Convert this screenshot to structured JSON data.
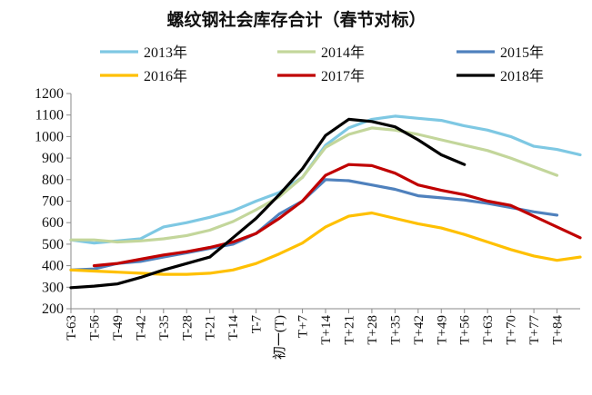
{
  "chart_data": {
    "type": "line",
    "title": "螺纹钢社会库存合计（春节对标）",
    "xlabel": "",
    "ylabel": "",
    "ylim": [
      200,
      1200
    ],
    "yticks": [
      200,
      300,
      400,
      500,
      600,
      700,
      800,
      900,
      1000,
      1100,
      1200
    ],
    "xlim": [
      -63,
      91
    ],
    "xtick_values": [
      -63,
      -56,
      -49,
      -42,
      -35,
      -28,
      -21,
      -14,
      -7,
      0,
      7,
      14,
      21,
      28,
      35,
      42,
      49,
      56,
      63,
      70,
      77,
      84
    ],
    "xtick_labels": [
      "T-63",
      "T-56",
      "T-49",
      "T-42",
      "T-35",
      "T-28",
      "T-21",
      "T-14",
      "T-7",
      "初一(T)",
      "T+7",
      "T+14",
      "T+21",
      "T+28",
      "T+35",
      "T+42",
      "T+49",
      "T+56",
      "T+63",
      "T+70",
      "T+77",
      "T+84"
    ],
    "grid": false,
    "legend": "top",
    "series": [
      {
        "name": "2013年",
        "color": "#7ec8e3",
        "x": [
          -63,
          -56,
          -49,
          -42,
          -35,
          -28,
          -21,
          -14,
          -7,
          0,
          7,
          14,
          21,
          28,
          35,
          42,
          49,
          56,
          63,
          70,
          77,
          84,
          91
        ],
        "y": [
          520,
          505,
          515,
          525,
          580,
          600,
          625,
          655,
          700,
          740,
          810,
          960,
          1040,
          1080,
          1095,
          1085,
          1075,
          1050,
          1030,
          1000,
          955,
          940,
          915
        ]
      },
      {
        "name": "2014年",
        "color": "#c3d69b",
        "x": [
          -63,
          -56,
          -49,
          -42,
          -35,
          -28,
          -21,
          -14,
          -7,
          0,
          7,
          14,
          21,
          28,
          35,
          42,
          49,
          56,
          63,
          70,
          77,
          84
        ],
        "y": [
          520,
          520,
          510,
          515,
          525,
          540,
          565,
          605,
          660,
          720,
          810,
          950,
          1010,
          1040,
          1030,
          1010,
          985,
          960,
          935,
          900,
          860,
          820
        ]
      },
      {
        "name": "2015年",
        "color": "#4f81bd",
        "x": [
          -63,
          -56,
          -49,
          -42,
          -35,
          -28,
          -21,
          -14,
          -7,
          0,
          7,
          14,
          21,
          28,
          35,
          42,
          49,
          56,
          63,
          70,
          77,
          84
        ],
        "y": [
          380,
          385,
          410,
          420,
          440,
          460,
          480,
          500,
          550,
          640,
          700,
          800,
          795,
          775,
          755,
          725,
          715,
          705,
          690,
          670,
          650,
          635
        ]
      },
      {
        "name": "2016年",
        "color": "#ffc000",
        "x": [
          -63,
          -56,
          -49,
          -42,
          -35,
          -28,
          -21,
          -14,
          -7,
          0,
          7,
          14,
          21,
          28,
          35,
          42,
          49,
          56,
          63,
          70,
          77,
          84,
          91
        ],
        "y": [
          380,
          375,
          370,
          365,
          360,
          360,
          365,
          380,
          410,
          455,
          505,
          580,
          630,
          645,
          620,
          595,
          575,
          545,
          510,
          475,
          445,
          425,
          440
        ]
      },
      {
        "name": "2017年",
        "color": "#c00000",
        "x": [
          -56,
          -49,
          -42,
          -35,
          -28,
          -21,
          -14,
          -7,
          0,
          7,
          14,
          21,
          28,
          35,
          42,
          49,
          56,
          63,
          70,
          77,
          84,
          91
        ],
        "y": [
          400,
          410,
          430,
          450,
          465,
          485,
          510,
          550,
          620,
          700,
          820,
          870,
          865,
          830,
          775,
          750,
          730,
          700,
          680,
          630,
          580,
          530
        ]
      },
      {
        "name": "2018年",
        "color": "#000000",
        "x": [
          -63,
          -56,
          -49,
          -42,
          -35,
          -28,
          -21,
          -14,
          -7,
          0,
          7,
          14,
          21,
          28,
          35,
          42,
          49,
          56
        ],
        "y": [
          298,
          305,
          315,
          345,
          380,
          410,
          440,
          530,
          620,
          730,
          850,
          1005,
          1080,
          1070,
          1045,
          985,
          915,
          870
        ]
      }
    ]
  }
}
